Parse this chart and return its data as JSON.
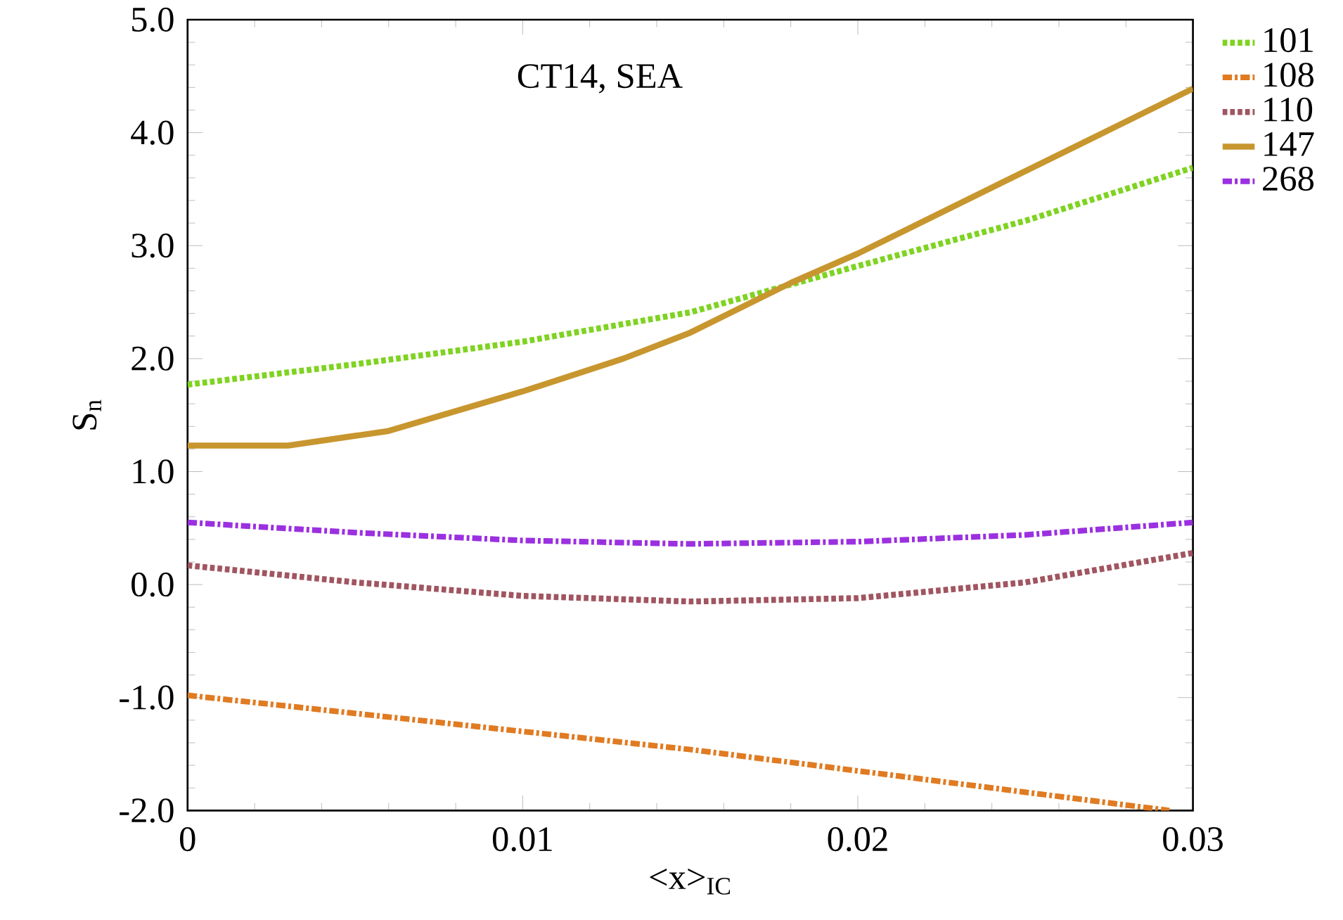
{
  "chart_data": {
    "type": "line",
    "xlabel": "<x>$_{IC}$",
    "ylabel": "S$_{n}$",
    "annotations": [
      "CT14, SEA"
    ],
    "xlim": [
      0,
      0.03
    ],
    "xticks": [
      0,
      0.01,
      0.02,
      0.03
    ],
    "ylim": [
      -2,
      5
    ],
    "yticks": [
      {
        "value": -2,
        "label": "-2.0"
      },
      {
        "value": -1,
        "label": "-1.0"
      },
      {
        "value": 0,
        "label": "0.0"
      },
      {
        "value": 1,
        "label": "1.0"
      },
      {
        "value": 2,
        "label": "2.0"
      },
      {
        "value": 3,
        "label": "3.0"
      },
      {
        "value": 4,
        "label": "4.0"
      },
      {
        "value": 5,
        "label": "5.0"
      }
    ],
    "legend": "top right",
    "grid": false,
    "series": [
      {
        "name": "101",
        "color": "#7fd321",
        "line_style": "dotted",
        "x": [
          0,
          0.005,
          0.01,
          0.015,
          0.02,
          0.025,
          0.03
        ],
        "values": [
          1.77,
          1.95,
          2.15,
          2.41,
          2.82,
          3.22,
          3.69
        ]
      },
      {
        "name": "108",
        "color": "#e07b22",
        "line_style": "dashdot",
        "x": [
          0,
          0.015,
          0.0293
        ],
        "values": [
          -0.98,
          -1.46,
          -2.0
        ]
      },
      {
        "name": "110",
        "color": "#a05560",
        "line_style": "dotted",
        "x": [
          0,
          0.005,
          0.01,
          0.015,
          0.02,
          0.025,
          0.03
        ],
        "values": [
          0.17,
          0.02,
          -0.1,
          -0.15,
          -0.12,
          0.02,
          0.28
        ]
      },
      {
        "name": "147",
        "color": "#c8962e",
        "line_style": "solid",
        "x": [
          0,
          0.003,
          0.006,
          0.01,
          0.013,
          0.015,
          0.018,
          0.02,
          0.025,
          0.03
        ],
        "values": [
          1.23,
          1.23,
          1.36,
          1.71,
          2.0,
          2.23,
          2.67,
          2.93,
          3.66,
          4.39
        ]
      },
      {
        "name": "268",
        "color": "#9b30e0",
        "line_style": "dashdot",
        "x": [
          0,
          0.005,
          0.01,
          0.015,
          0.02,
          0.025,
          0.03
        ],
        "values": [
          0.55,
          0.46,
          0.39,
          0.36,
          0.38,
          0.44,
          0.55
        ]
      }
    ]
  }
}
